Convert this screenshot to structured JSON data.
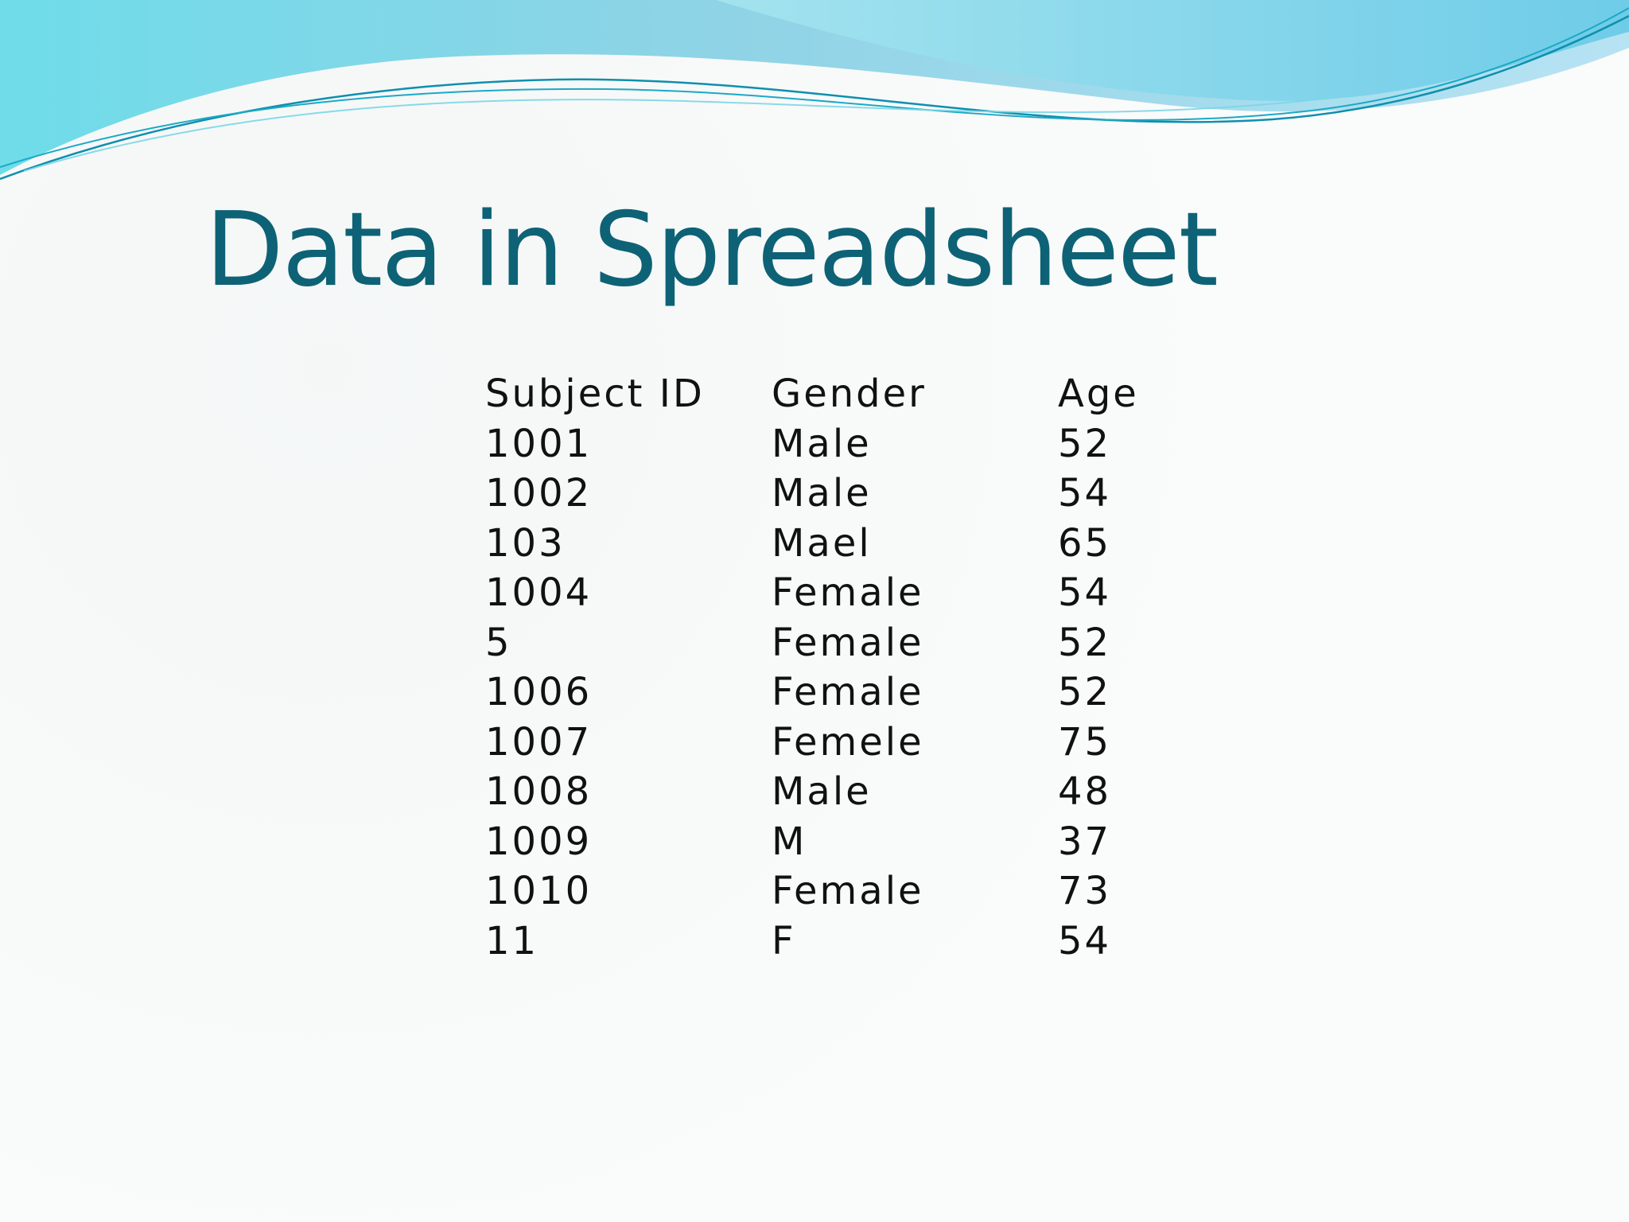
{
  "slide": {
    "title": "Data in Spreadsheet"
  },
  "table": {
    "headers": [
      "Subject ID",
      "Gender",
      "Age"
    ],
    "rows": [
      [
        "1001",
        "Male",
        "52"
      ],
      [
        "1002",
        "Male",
        "54"
      ],
      [
        "103",
        "Mael",
        "65"
      ],
      [
        "1004",
        "Female",
        "54"
      ],
      [
        "5",
        "Female",
        "52"
      ],
      [
        "1006",
        "Female",
        "52"
      ],
      [
        "1007",
        "Femele",
        "75"
      ],
      [
        "1008",
        "Male",
        "48"
      ],
      [
        "1009",
        "M",
        "37"
      ],
      [
        "1010",
        "Female",
        "73"
      ],
      [
        "11",
        "F",
        "54"
      ]
    ]
  },
  "theme": {
    "title_color": "#0e6276",
    "text_color": "#111111",
    "wave_light": "#bfeaf0",
    "wave_mid": "#5fcfe3",
    "wave_dark": "#1aa9c6"
  }
}
